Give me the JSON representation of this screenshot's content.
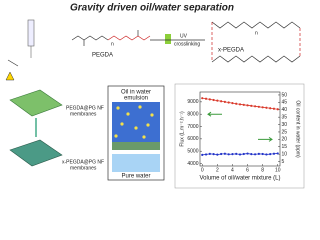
{
  "title": "Gravity driven oil/water separation",
  "scheme": {
    "monomer": "PEGDA",
    "repeat_unit": "n",
    "uv_label": "UV",
    "arrow_label": "crosslinking",
    "product": "x-PEGDA",
    "membrane_top": [
      "PEGDA@PG NF",
      "membranes"
    ],
    "membrane_bottom": [
      "x-PEGDA@PG NF",
      "membranes"
    ],
    "emulsion": [
      "Oil in water",
      "emulsion"
    ],
    "pure": "Pure water"
  },
  "chart_data": {
    "type": "line",
    "xlabel": "Volume of oil/water mixture (L)",
    "ylabel": "Flux (L.m⁻².h⁻¹)",
    "y2label": "Oil content in water (ppm)",
    "x": [
      0,
      0.5,
      1,
      1.5,
      2,
      2.5,
      3,
      3.5,
      4,
      4.5,
      5,
      5.5,
      6,
      6.5,
      7,
      7.5,
      8,
      8.5,
      9,
      9.5,
      10
    ],
    "series": [
      {
        "color": "#d9392b",
        "axis": "y",
        "values": [
          9300,
          9250,
          9200,
          9150,
          9100,
          9050,
          9000,
          8950,
          8900,
          8850,
          8800,
          8760,
          8720,
          8680,
          8640,
          8600,
          8560,
          8520,
          8480,
          8440,
          8400
        ]
      },
      {
        "color": "#2233c8",
        "axis": "y2",
        "values": [
          9.5,
          9.8,
          10.2,
          10,
          9.7,
          10.1,
          10.3,
          9.9,
          10,
          10.2,
          9.8,
          10.1,
          10.4,
          10,
          9.9,
          10.2,
          10.1,
          9.8,
          10,
          10.3,
          10.5
        ]
      }
    ],
    "xlim": [
      -0.3,
      10.3
    ],
    "xticks": [
      0,
      2,
      4,
      6,
      8,
      10
    ],
    "ylim": [
      3800,
      9800
    ],
    "yticks": [
      4000,
      5000,
      6000,
      7000,
      8000,
      9000
    ],
    "y2lim": [
      2,
      52
    ],
    "y2ticks": [
      5,
      10,
      15,
      20,
      25,
      30,
      35,
      40,
      45,
      50
    ]
  }
}
